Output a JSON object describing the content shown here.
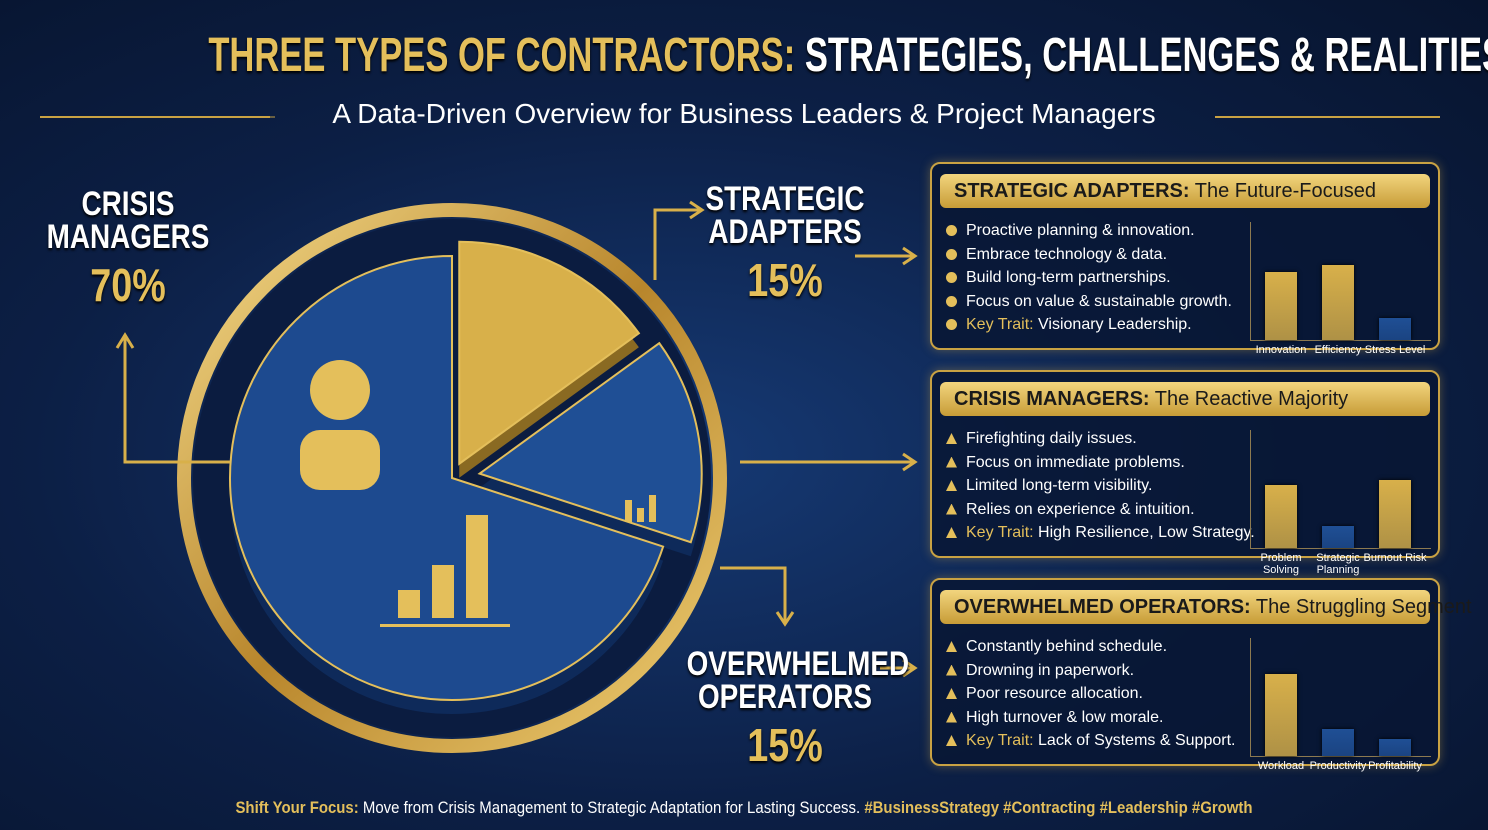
{
  "header": {
    "title_gold": "THREE TYPES OF CONTRACTORS:",
    "title_white": "STRATEGIES, CHALLENGES & REALITIES",
    "subtitle": "A Data-Driven Overview for Business Leaders & Project Managers"
  },
  "chart_data": {
    "type": "pie",
    "categories": [
      "CRISIS\nMANAGERS",
      "STRATEGIC\nADAPTERS",
      "OVERWHELMED\nOPERATORS"
    ],
    "values": [
      70,
      15,
      15
    ],
    "value_labels": [
      "70%",
      "15%",
      "15%"
    ],
    "colors": [
      "#1d4a8f",
      "#d8b04a",
      "#1f4f95"
    ]
  },
  "panels": [
    {
      "title": "STRATEGIC ADAPTERS:",
      "subtitle": "The Future-Focused",
      "items": [
        "Proactive planning & innovation.",
        "Embrace technology & data.",
        "Build long-term partnerships.",
        "Focus on value & sustainable growth."
      ],
      "key_label": "Key Trait:",
      "key_text": "Visionary Leadership.",
      "bars": {
        "categories": [
          "Innovation",
          "Efficiency",
          "Stress Level"
        ],
        "values": [
          80,
          88,
          26
        ],
        "colors": [
          "#d8b04a",
          "#d8b04a",
          "#1f4f95"
        ]
      }
    },
    {
      "title": "CRISIS MANAGERS:",
      "subtitle": "The Reactive Majority",
      "items": [
        "Firefighting daily issues.",
        "Focus on immediate problems.",
        "Limited long-term visibility.",
        "Relies on experience & intuition."
      ],
      "key_label": "Key Trait:",
      "key_text": "High Resilience, Low Strategy.",
      "bars": {
        "categories": [
          "Problem Solving",
          "Strategic Planning",
          "Burnout Risk"
        ],
        "values": [
          74,
          26,
          80
        ],
        "colors": [
          "#d8b04a",
          "#1f4f95",
          "#d8b04a"
        ]
      }
    },
    {
      "title": "OVERWHELMED OPERATORS:",
      "subtitle": "The Struggling Segment",
      "items": [
        "Constantly behind schedule.",
        "Drowning in paperwork.",
        "Poor resource allocation.",
        "High turnover & low morale."
      ],
      "key_label": "Key Trait:",
      "key_text": "Lack of Systems & Support.",
      "bars": {
        "categories": [
          "Workload",
          "Productivity",
          "Profitability"
        ],
        "values": [
          96,
          32,
          20
        ],
        "colors": [
          "#d8b04a",
          "#1f4f95",
          "#1f4f95"
        ]
      }
    }
  ],
  "footer": {
    "lead": "Shift Your Focus:",
    "text": "Move from Crisis Management to Strategic Adaptation for Lasting Success.",
    "tags": "#BusinessStrategy #Contracting #Leadership #Growth"
  }
}
